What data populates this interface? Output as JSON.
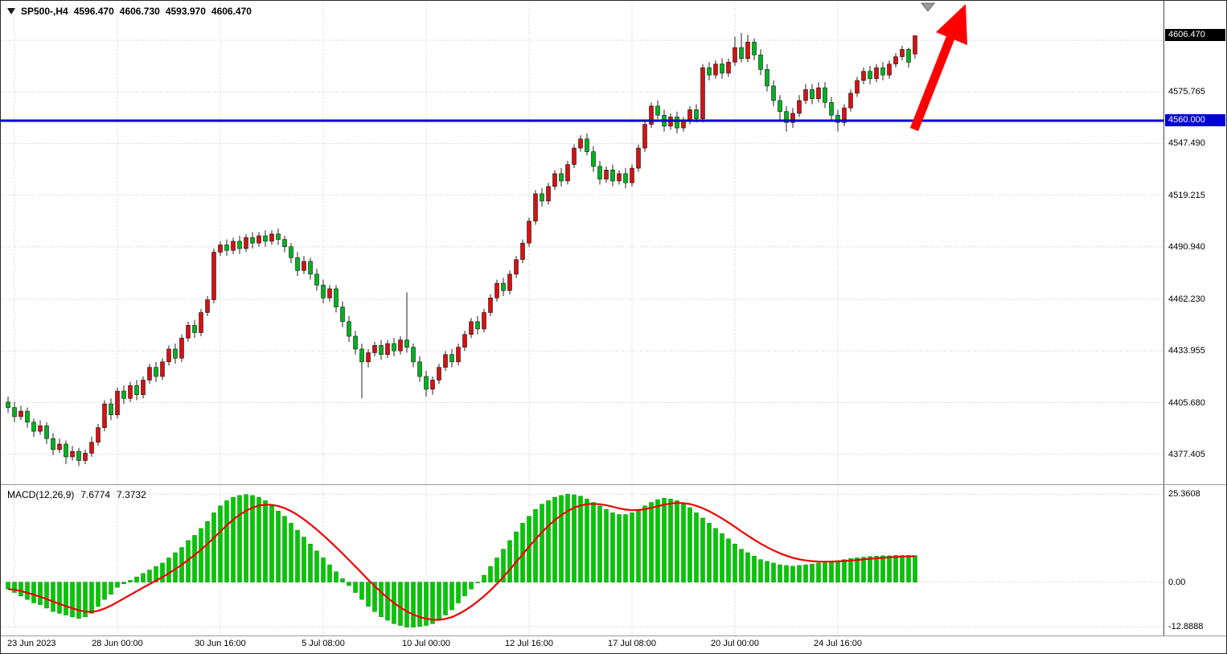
{
  "header": {
    "symbol_period": "SP500-,H4",
    "open": "4596.470",
    "high": "4606.730",
    "low": "4593.970",
    "close": "4606.470"
  },
  "macd": {
    "label": "MACD(12,26,9)",
    "macd_value": "7.6774",
    "signal_value": "7.3732"
  },
  "colors": {
    "background": "#ffffff",
    "grid": "#c8c8c8",
    "bull": "#d61111",
    "bear": "#00b31d",
    "wick": "#222222",
    "candle_border": "#1a1a1a",
    "macd_hist": "#00c800",
    "macd_hist_border": "#008800",
    "macd_signal": "#ee0000",
    "arrow": "#ff0000",
    "current_badge_bg": "#000000",
    "shift_marker": "#9a9a9a",
    "axis_text": "#000000"
  },
  "annotations": {
    "trend_arrow": {
      "shape": "arrow",
      "direction": "up-right",
      "color": "#ff0000"
    },
    "shift_marker": {
      "shape": "triangle-down",
      "color": "#9a9a9a"
    }
  },
  "chart_data": [
    {
      "type": "candlestick",
      "symbol": "SP500-",
      "timeframe": "H4",
      "title": "SP500-,H4 4596.470 4606.730 4593.970 4606.470",
      "x_tick_labels": [
        "23 Jun 2023",
        "28 Jun 00:00",
        "30 Jun 16:00",
        "5 Jul 08:00",
        "10 Jul 00:00",
        "12 Jul 16:00",
        "17 Jul 08:00",
        "20 Jul 00:00",
        "24 Jul 16:00"
      ],
      "x_tick_indices": [
        1,
        17,
        33,
        49,
        65,
        81,
        97,
        113,
        129
      ],
      "y_tick_labels": [
        "4575.765",
        "4547.490",
        "4519.215",
        "4490.940",
        "4462.230",
        "4433.955",
        "4405.680",
        "4377.405"
      ],
      "y_gridlines": [
        4604.04,
        4575.765,
        4547.49,
        4519.215,
        4490.94,
        4462.23,
        4433.955,
        4405.68,
        4377.405
      ],
      "ylim": [
        4361.0,
        4625.6
      ],
      "grid": true,
      "horizontal_level": {
        "price": 4560.0,
        "label": "4560.000",
        "color": "#0000d8"
      },
      "current_price": {
        "value": 4606.47,
        "label": "4606.470"
      },
      "candles_ohlc": [
        [
          4406,
          4409,
          4400,
          4403
        ],
        [
          4403,
          4406,
          4395,
          4398
        ],
        [
          4398,
          4404,
          4396,
          4401
        ],
        [
          4401,
          4403,
          4392,
          4395
        ],
        [
          4395,
          4397,
          4387,
          4390
        ],
        [
          4390,
          4396,
          4388,
          4393
        ],
        [
          4393,
          4395,
          4383,
          4386
        ],
        [
          4386,
          4389,
          4377,
          4380
        ],
        [
          4380,
          4386,
          4378,
          4383
        ],
        [
          4383,
          4385,
          4372,
          4376
        ],
        [
          4376,
          4382,
          4374,
          4379
        ],
        [
          4379,
          4381,
          4371,
          4374
        ],
        [
          4374,
          4380,
          4372,
          4378
        ],
        [
          4378,
          4387,
          4376,
          4384
        ],
        [
          4384,
          4394,
          4382,
          4392
        ],
        [
          4392,
          4407,
          4390,
          4405
        ],
        [
          4405,
          4408,
          4396,
          4399
        ],
        [
          4399,
          4414,
          4397,
          4412
        ],
        [
          4412,
          4415,
          4405,
          4408
        ],
        [
          4408,
          4417,
          4406,
          4415
        ],
        [
          4415,
          4418,
          4407,
          4410
        ],
        [
          4410,
          4420,
          4408,
          4418
        ],
        [
          4418,
          4427,
          4416,
          4425
        ],
        [
          4425,
          4428,
          4417,
          4420
        ],
        [
          4420,
          4430,
          4418,
          4428
        ],
        [
          4428,
          4437,
          4426,
          4435
        ],
        [
          4435,
          4438,
          4427,
          4430
        ],
        [
          4430,
          4443,
          4428,
          4441
        ],
        [
          4441,
          4450,
          4439,
          4448
        ],
        [
          4448,
          4451,
          4441,
          4444
        ],
        [
          4444,
          4457,
          4442,
          4455
        ],
        [
          4455,
          4464,
          4453,
          4462
        ],
        [
          4462,
          4490,
          4460,
          4488
        ],
        [
          4488,
          4494,
          4486,
          4492
        ],
        [
          4492,
          4495,
          4486,
          4489
        ],
        [
          4489,
          4496,
          4487,
          4494
        ],
        [
          4494,
          4497,
          4487,
          4490
        ],
        [
          4490,
          4498,
          4488,
          4496
        ],
        [
          4496,
          4499,
          4490,
          4493
        ],
        [
          4493,
          4499,
          4491,
          4497
        ],
        [
          4497,
          4500,
          4491,
          4494
        ],
        [
          4494,
          4500,
          4492,
          4498
        ],
        [
          4498,
          4501,
          4492,
          4495
        ],
        [
          4495,
          4497,
          4488,
          4491
        ],
        [
          4491,
          4493,
          4482,
          4485
        ],
        [
          4485,
          4488,
          4475,
          4478
        ],
        [
          4478,
          4486,
          4476,
          4483
        ],
        [
          4483,
          4485,
          4473,
          4476
        ],
        [
          4476,
          4479,
          4467,
          4470
        ],
        [
          4470,
          4473,
          4460,
          4463
        ],
        [
          4463,
          4470,
          4461,
          4468
        ],
        [
          4468,
          4470,
          4455,
          4458
        ],
        [
          4458,
          4461,
          4447,
          4450
        ],
        [
          4450,
          4453,
          4439,
          4442
        ],
        [
          4442,
          4445,
          4432,
          4435
        ],
        [
          4435,
          4438,
          4408,
          4428
        ],
        [
          4428,
          4435,
          4425,
          4433
        ],
        [
          4433,
          4439,
          4431,
          4437
        ],
        [
          4437,
          4440,
          4429,
          4432
        ],
        [
          4432,
          4440,
          4430,
          4438
        ],
        [
          4438,
          4441,
          4431,
          4434
        ],
        [
          4434,
          4442,
          4432,
          4440
        ],
        [
          4440,
          4466,
          4433,
          4436
        ],
        [
          4436,
          4438,
          4425,
          4428
        ],
        [
          4428,
          4431,
          4417,
          4420
        ],
        [
          4420,
          4423,
          4409,
          4413
        ],
        [
          4413,
          4420,
          4410,
          4418
        ],
        [
          4418,
          4427,
          4416,
          4425
        ],
        [
          4425,
          4434,
          4423,
          4432
        ],
        [
          4432,
          4435,
          4425,
          4428
        ],
        [
          4428,
          4438,
          4426,
          4436
        ],
        [
          4436,
          4445,
          4434,
          4443
        ],
        [
          4443,
          4452,
          4441,
          4450
        ],
        [
          4450,
          4453,
          4443,
          4446
        ],
        [
          4446,
          4457,
          4444,
          4455
        ],
        [
          4455,
          4465,
          4453,
          4463
        ],
        [
          4463,
          4473,
          4461,
          4471
        ],
        [
          4471,
          4474,
          4464,
          4467
        ],
        [
          4467,
          4478,
          4465,
          4476
        ],
        [
          4476,
          4486,
          4474,
          4484
        ],
        [
          4484,
          4495,
          4482,
          4493
        ],
        [
          4493,
          4507,
          4491,
          4505
        ],
        [
          4505,
          4522,
          4503,
          4520
        ],
        [
          4520,
          4523,
          4513,
          4516
        ],
        [
          4516,
          4526,
          4514,
          4524
        ],
        [
          4524,
          4533,
          4522,
          4531
        ],
        [
          4531,
          4534,
          4524,
          4527
        ],
        [
          4527,
          4538,
          4525,
          4536
        ],
        [
          4536,
          4547,
          4534,
          4545
        ],
        [
          4545,
          4552,
          4543,
          4550
        ],
        [
          4550,
          4553,
          4541,
          4543
        ],
        [
          4543,
          4546,
          4532,
          4535
        ],
        [
          4535,
          4538,
          4525,
          4528
        ],
        [
          4528,
          4535,
          4526,
          4533
        ],
        [
          4533,
          4536,
          4524,
          4527
        ],
        [
          4527,
          4533,
          4525,
          4531
        ],
        [
          4531,
          4534,
          4523,
          4526
        ],
        [
          4526,
          4536,
          4524,
          4534
        ],
        [
          4534,
          4547,
          4532,
          4545
        ],
        [
          4545,
          4560,
          4543,
          4558
        ],
        [
          4558,
          4570,
          4556,
          4568
        ],
        [
          4568,
          4571,
          4561,
          4563
        ],
        [
          4563,
          4566,
          4554,
          4557
        ],
        [
          4557,
          4564,
          4555,
          4562
        ],
        [
          4562,
          4565,
          4553,
          4556
        ],
        [
          4556,
          4562,
          4554,
          4560
        ],
        [
          4560,
          4568,
          4558,
          4566
        ],
        [
          4566,
          4569,
          4559,
          4561
        ],
        [
          4561,
          4591,
          4559,
          4589
        ],
        [
          4589,
          4592,
          4582,
          4585
        ],
        [
          4585,
          4593,
          4583,
          4591
        ],
        [
          4591,
          4594,
          4583,
          4586
        ],
        [
          4586,
          4594,
          4584,
          4592
        ],
        [
          4592,
          4606,
          4590,
          4600
        ],
        [
          4600,
          4608,
          4592,
          4594
        ],
        [
          4594,
          4607,
          4592,
          4603
        ],
        [
          4603,
          4605,
          4593,
          4596
        ],
        [
          4596,
          4599,
          4585,
          4588
        ],
        [
          4588,
          4591,
          4576,
          4579
        ],
        [
          4579,
          4582,
          4568,
          4571
        ],
        [
          4571,
          4574,
          4560,
          4565
        ],
        [
          4565,
          4568,
          4554,
          4559
        ],
        [
          4559,
          4567,
          4556,
          4564
        ],
        [
          4564,
          4574,
          4562,
          4571
        ],
        [
          4571,
          4580,
          4569,
          4577
        ],
        [
          4577,
          4580,
          4569,
          4572
        ],
        [
          4572,
          4581,
          4570,
          4578
        ],
        [
          4578,
          4581,
          4567,
          4570
        ],
        [
          4570,
          4573,
          4560,
          4563
        ],
        [
          4563,
          4566,
          4554,
          4559
        ],
        [
          4559,
          4569,
          4557,
          4567
        ],
        [
          4567,
          4577,
          4565,
          4575
        ],
        [
          4575,
          4584,
          4573,
          4582
        ],
        [
          4582,
          4589,
          4580,
          4587
        ],
        [
          4587,
          4590,
          4580,
          4583
        ],
        [
          4583,
          4591,
          4581,
          4589
        ],
        [
          4589,
          4592,
          4582,
          4585
        ],
        [
          4585,
          4593,
          4583,
          4591
        ],
        [
          4591,
          4597,
          4589,
          4595
        ],
        [
          4595,
          4601,
          4593,
          4599
        ],
        [
          4599,
          4600,
          4589,
          4592
        ],
        [
          4596.47,
          4606.73,
          4593.97,
          4606.47
        ]
      ]
    },
    {
      "type": "bar",
      "name": "MACD(12,26,9) histogram with signal line",
      "y_tick_labels": [
        "25.3608",
        "0.00",
        "-12.8888"
      ],
      "y_gridlines": [
        25.3608,
        0,
        -12.8888
      ],
      "ylim": [
        -15.4,
        28.0
      ],
      "signal_period": 9,
      "macd_value": 7.6774,
      "signal_value": 7.3732,
      "values": [
        -2,
        -3,
        -4,
        -5,
        -6,
        -6.5,
        -7.5,
        -8.5,
        -9,
        -9.5,
        -10,
        -10.5,
        -10,
        -9,
        -7,
        -5,
        -3.5,
        -1.5,
        -0.5,
        0.5,
        1.5,
        2.5,
        3.5,
        4.5,
        5.5,
        7,
        8.5,
        10,
        12,
        13.5,
        15.5,
        17.5,
        20,
        22,
        23.5,
        24.5,
        25,
        25.3,
        25,
        24.5,
        23.5,
        22,
        20.5,
        19,
        17,
        15,
        13,
        11,
        9,
        7,
        5,
        3,
        1,
        -1,
        -3,
        -5,
        -7,
        -8.5,
        -10,
        -11,
        -12,
        -12.5,
        -13,
        -13,
        -12.8,
        -12.5,
        -12,
        -11,
        -9.5,
        -8,
        -6,
        -4,
        -2,
        0,
        2,
        4.5,
        7,
        9.5,
        12,
        14.5,
        17,
        19,
        21,
        22.5,
        23.5,
        24.5,
        25,
        25.4,
        25.2,
        24.8,
        24,
        23,
        22,
        21,
        20,
        19.5,
        19.5,
        20,
        21,
        22,
        23,
        23.8,
        24.2,
        24,
        23.5,
        22.5,
        21.5,
        20,
        18.5,
        17,
        15.5,
        14,
        12.5,
        11,
        9.5,
        8.5,
        7.5,
        6.5,
        6,
        5.5,
        5,
        4.8,
        4.6,
        4.8,
        5,
        5.2,
        5.5,
        5.8,
        6,
        6.2,
        6.5,
        6.8,
        7,
        7.2,
        7.4,
        7.5,
        7.6,
        7.6,
        7.7,
        7.7,
        7.7,
        7.68
      ]
    }
  ]
}
